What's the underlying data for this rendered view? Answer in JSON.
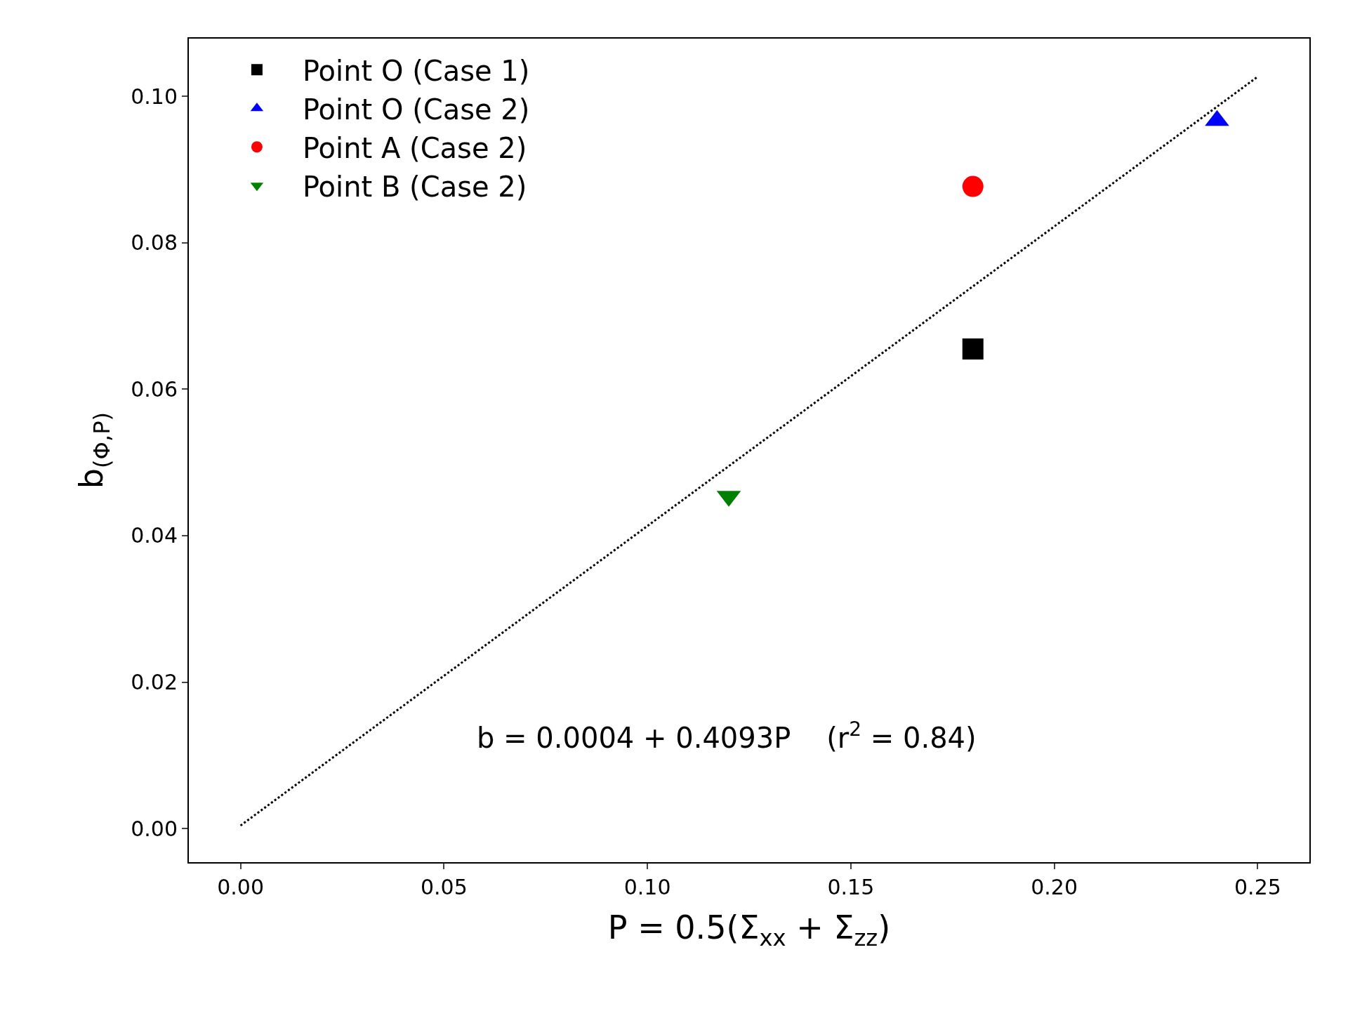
{
  "chart_data": {
    "type": "scatter",
    "xlabel": "P = 0.5(Σ$_{xx}$ + Σ$_{zz}$)",
    "ylabel": "b$_{(Φ,P)}$",
    "series": [
      {
        "name": "Point O (Case 1)",
        "color": "#000000",
        "marker": "square",
        "x": [
          0.18
        ],
        "values": [
          0.0655
        ]
      },
      {
        "name": "Point O (Case 2)",
        "color": "#0000ff",
        "marker": "triangle",
        "x": [
          0.24
        ],
        "values": [
          0.0967
        ]
      },
      {
        "name": "Point A (Case 2)",
        "color": "#ff0000",
        "marker": "circle",
        "x": [
          0.18
        ],
        "values": [
          0.0877
        ]
      },
      {
        "name": "Point B (Case 2)",
        "color": "#008000",
        "marker": "triangle-down",
        "x": [
          0.12
        ],
        "values": [
          0.0454
        ]
      },
      {
        "type": "line",
        "color": "#000000",
        "line_style": "dotted",
        "marker": "none",
        "x": [
          0.0,
          0.25
        ],
        "values": [
          0.0004,
          0.1027
        ]
      }
    ],
    "annotations": [
      "b = 0.0004 + 0.4093P    (r$^{2}$ = 0.84)"
    ],
    "xlim": [
      -0.0127,
      0.2627
    ],
    "xticks": [
      {
        "value": 0,
        "label": "0.00"
      },
      0.05,
      {
        "value": 0.1,
        "label": "0.10"
      },
      0.15,
      {
        "value": 0.2,
        "label": "0.20"
      },
      0.25
    ],
    "ylim": [
      -0.0046,
      0.1079
    ],
    "yticks": [
      {
        "value": 0,
        "label": "0.00"
      },
      0.02,
      0.04,
      0.06,
      0.08,
      {
        "value": 0.1,
        "label": "0.10"
      }
    ],
    "legend": "top left"
  }
}
